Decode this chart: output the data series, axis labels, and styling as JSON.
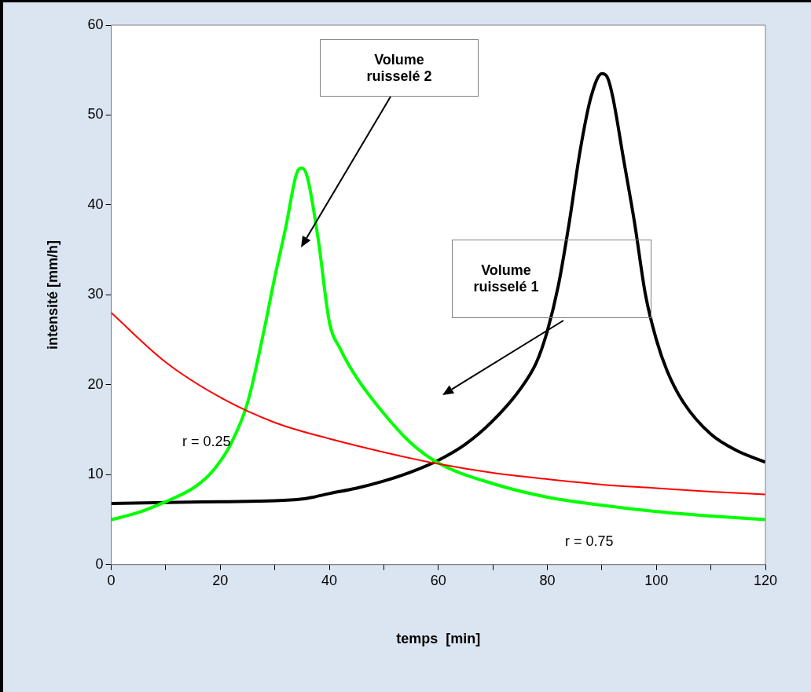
{
  "chart_data": {
    "type": "line",
    "xlabel": "temps  [min]",
    "ylabel": "intensité [mm/h]",
    "xlim": [
      0,
      120
    ],
    "ylim": [
      0,
      60
    ],
    "xticks": [
      0,
      {
        "value": 10,
        "label": null
      },
      20,
      {
        "value": 30,
        "label": null
      },
      40,
      {
        "value": 50,
        "label": null
      },
      60,
      {
        "value": 70,
        "label": null
      },
      80,
      {
        "value": 90,
        "label": null
      },
      100,
      {
        "value": 110,
        "label": null
      },
      120
    ],
    "yticks": [
      0,
      10,
      20,
      30,
      40,
      50,
      60
    ],
    "grid": false,
    "legend": false,
    "marker": "none",
    "line_style": "solid",
    "series": [
      {
        "color": "#ff0000",
        "x": [
          0,
          10,
          20,
          30,
          40,
          50,
          60,
          70,
          80,
          90,
          100,
          110,
          120
        ],
        "values": [
          28,
          22.5,
          18.6,
          15.8,
          14,
          12.5,
          11.2,
          10.2,
          9.5,
          8.9,
          8.5,
          8.1,
          7.8
        ]
      },
      {
        "color": "#00ff00",
        "x": [
          0,
          5,
          10,
          15,
          18,
          20,
          22,
          25,
          28,
          30,
          32,
          34,
          35,
          36,
          38,
          40,
          42,
          45,
          50,
          55,
          60,
          70,
          80,
          90,
          100,
          110,
          120
        ],
        "values": [
          5,
          5.8,
          7,
          8.5,
          10,
          11.5,
          13.5,
          18,
          26,
          32,
          37.5,
          43.5,
          44.1,
          43,
          36,
          27,
          24,
          20.8,
          16.8,
          13.5,
          11.3,
          9,
          7.5,
          6.6,
          5.9,
          5.4,
          5
        ]
      },
      {
        "color": "#000000",
        "x": [
          0,
          10,
          20,
          30,
          35,
          37,
          40,
          45,
          50,
          55,
          60,
          65,
          70,
          75,
          78,
          80,
          82,
          84,
          86,
          88,
          90,
          91,
          92,
          94,
          96,
          98,
          100,
          102,
          105,
          110,
          115,
          120
        ],
        "values": [
          6.8,
          6.9,
          7,
          7.1,
          7.3,
          7.5,
          7.9,
          8.5,
          9.3,
          10.3,
          11.6,
          13.4,
          16,
          19.5,
          22.5,
          26,
          31,
          38,
          46,
          52,
          54.6,
          54.2,
          52,
          45,
          38,
          30,
          25,
          21.5,
          18,
          14.5,
          12.6,
          11.4
        ]
      }
    ],
    "annotations": [
      "Volume ruisselé 2",
      "Volume ruisselé 1",
      "r = 0.25",
      "r = 0.75"
    ]
  }
}
